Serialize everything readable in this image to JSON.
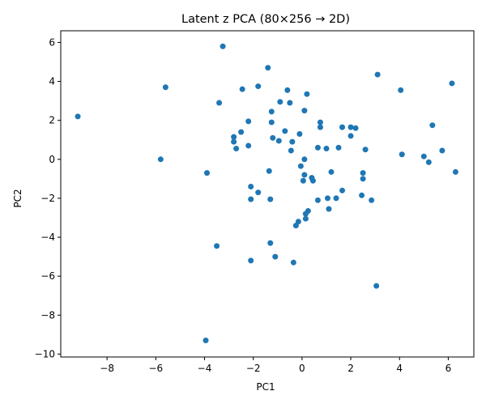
{
  "chart_data": {
    "type": "scatter",
    "title": "Latent z PCA (80×256 → 2D)",
    "xlabel": "PC1",
    "ylabel": "PC2",
    "xlim": [
      -9.9,
      7.05
    ],
    "ylim": [
      -10.15,
      6.6
    ],
    "xticks": [
      -8,
      -6,
      -4,
      -2,
      0,
      2,
      4,
      6
    ],
    "yticks": [
      -10,
      -8,
      -6,
      -4,
      -2,
      0,
      2,
      4,
      6
    ],
    "grid": false,
    "legend": "none",
    "marker_color": "#1f77b4",
    "points": [
      {
        "x": -9.2,
        "y": 2.2
      },
      {
        "x": -5.8,
        "y": 0.0
      },
      {
        "x": -5.6,
        "y": 3.7
      },
      {
        "x": -3.9,
        "y": -0.7
      },
      {
        "x": -3.95,
        "y": -9.3
      },
      {
        "x": -3.5,
        "y": -4.45
      },
      {
        "x": -3.4,
        "y": 2.9
      },
      {
        "x": -3.25,
        "y": 5.8
      },
      {
        "x": -2.8,
        "y": 1.15
      },
      {
        "x": -2.8,
        "y": 0.9
      },
      {
        "x": -2.7,
        "y": 0.55
      },
      {
        "x": -2.5,
        "y": 1.4
      },
      {
        "x": -2.45,
        "y": 3.6
      },
      {
        "x": -2.2,
        "y": 0.7
      },
      {
        "x": -2.2,
        "y": 1.95
      },
      {
        "x": -2.1,
        "y": -1.4
      },
      {
        "x": -2.1,
        "y": -2.05
      },
      {
        "x": -2.1,
        "y": -5.2
      },
      {
        "x": -1.8,
        "y": 3.75
      },
      {
        "x": -1.8,
        "y": -1.7
      },
      {
        "x": -1.4,
        "y": 4.7
      },
      {
        "x": -1.35,
        "y": -0.6
      },
      {
        "x": -1.3,
        "y": -2.05
      },
      {
        "x": -1.3,
        "y": -4.3
      },
      {
        "x": -1.25,
        "y": 1.9
      },
      {
        "x": -1.25,
        "y": 2.45
      },
      {
        "x": -1.2,
        "y": 1.1
      },
      {
        "x": -1.1,
        "y": -5.0
      },
      {
        "x": -0.95,
        "y": 0.95
      },
      {
        "x": -0.9,
        "y": 2.95
      },
      {
        "x": -0.7,
        "y": 1.45
      },
      {
        "x": -0.6,
        "y": 3.55
      },
      {
        "x": -0.5,
        "y": 2.9
      },
      {
        "x": -0.45,
        "y": 0.45
      },
      {
        "x": -0.4,
        "y": 0.9
      },
      {
        "x": -0.35,
        "y": -5.3
      },
      {
        "x": -0.25,
        "y": -3.4
      },
      {
        "x": -0.15,
        "y": -3.2
      },
      {
        "x": -0.1,
        "y": 1.3
      },
      {
        "x": -0.05,
        "y": -0.35
      },
      {
        "x": 0.05,
        "y": -1.1
      },
      {
        "x": 0.1,
        "y": 0.0
      },
      {
        "x": 0.1,
        "y": -0.8
      },
      {
        "x": 0.1,
        "y": 2.5
      },
      {
        "x": 0.15,
        "y": -2.8
      },
      {
        "x": 0.15,
        "y": -3.05
      },
      {
        "x": 0.2,
        "y": 3.35
      },
      {
        "x": 0.25,
        "y": -2.65
      },
      {
        "x": 0.4,
        "y": -0.95
      },
      {
        "x": 0.45,
        "y": -1.1
      },
      {
        "x": 0.65,
        "y": 0.6
      },
      {
        "x": 0.65,
        "y": -2.1
      },
      {
        "x": 0.75,
        "y": 1.9
      },
      {
        "x": 0.75,
        "y": 1.65
      },
      {
        "x": 1.0,
        "y": 0.55
      },
      {
        "x": 1.05,
        "y": -2.0
      },
      {
        "x": 1.1,
        "y": -2.55
      },
      {
        "x": 1.2,
        "y": -0.65
      },
      {
        "x": 1.4,
        "y": -2.0
      },
      {
        "x": 1.5,
        "y": 0.6
      },
      {
        "x": 1.65,
        "y": 1.65
      },
      {
        "x": 1.65,
        "y": -1.6
      },
      {
        "x": 2.0,
        "y": 1.65
      },
      {
        "x": 2.0,
        "y": 1.2
      },
      {
        "x": 2.2,
        "y": 1.6
      },
      {
        "x": 2.45,
        "y": -1.85
      },
      {
        "x": 2.5,
        "y": -0.7
      },
      {
        "x": 2.5,
        "y": -1.0
      },
      {
        "x": 2.6,
        "y": 0.5
      },
      {
        "x": 2.85,
        "y": -2.1
      },
      {
        "x": 3.05,
        "y": -6.5
      },
      {
        "x": 3.1,
        "y": 4.35
      },
      {
        "x": 4.05,
        "y": 3.55
      },
      {
        "x": 4.1,
        "y": 0.25
      },
      {
        "x": 5.0,
        "y": 0.15
      },
      {
        "x": 5.2,
        "y": -0.15
      },
      {
        "x": 5.35,
        "y": 1.75
      },
      {
        "x": 5.75,
        "y": 0.45
      },
      {
        "x": 6.15,
        "y": 3.9
      },
      {
        "x": 6.3,
        "y": -0.65
      }
    ]
  }
}
